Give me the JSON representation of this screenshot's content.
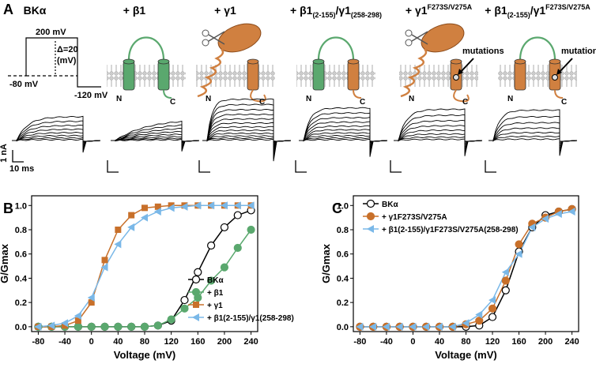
{
  "panel_a": {
    "label": "A",
    "headers": [
      [
        {
          "t": "BKα"
        }
      ],
      [
        {
          "t": "+ β1"
        }
      ],
      [
        {
          "t": "+ γ1"
        }
      ],
      [
        {
          "t": "+ β1"
        },
        {
          "t": "(2-155)",
          "s": "sub"
        },
        {
          "t": "/γ1"
        },
        {
          "t": "(258-298)",
          "s": "sub"
        }
      ],
      [
        {
          "t": "+ γ1"
        },
        {
          "t": "F273S/V275A",
          "s": "sup"
        }
      ],
      [
        {
          "t": "+ β1"
        },
        {
          "t": "(2-155)",
          "s": "sub"
        },
        {
          "t": "/γ1"
        },
        {
          "t": "F273S/V275A",
          "s": "sup"
        }
      ]
    ],
    "protocol": {
      "top": "200 mV",
      "step": "Δ=20",
      "unit": "(mV)",
      "hold": "-80 mV",
      "tail": "-120 mV"
    },
    "termini": {
      "n": "N",
      "c": "C"
    },
    "mutations": "mutations",
    "scale": {
      "current": "1 nA",
      "time": "10 ms"
    }
  },
  "chart_data": [
    {
      "type": "line",
      "panel": "B",
      "xlabel": "Voltage (mV)",
      "ylabel": "G/Gmax",
      "legend": "lower right",
      "x": [
        -80,
        -60,
        -40,
        -20,
        0,
        20,
        40,
        60,
        80,
        100,
        120,
        140,
        160,
        180,
        200,
        220,
        240
      ],
      "xlim": [
        -90,
        250
      ],
      "xticks": [
        -80,
        -40,
        0,
        40,
        80,
        120,
        160,
        200,
        240
      ],
      "ylim": [
        -0.04,
        1.08
      ],
      "yticks": [
        {
          "value": 0,
          "label": "0.0"
        },
        {
          "value": 0.2,
          "label": "0.2"
        },
        {
          "value": 0.4,
          "label": "0.4"
        },
        {
          "value": 0.6,
          "label": "0.6"
        },
        {
          "value": 0.8,
          "label": "0.8"
        },
        {
          "value": 1,
          "label": "1.0"
        }
      ],
      "series": [
        {
          "name": "BKα",
          "color": "#000000",
          "marker": "open-circle",
          "values": [
            0,
            0,
            0,
            0,
            0,
            0,
            0,
            0,
            0,
            0.01,
            0.05,
            0.22,
            0.45,
            0.67,
            0.82,
            0.92,
            0.96
          ]
        },
        {
          "name": "+ β1",
          "color": "#5aa86e",
          "marker": "circle",
          "values": [
            0,
            0,
            0,
            0,
            0,
            0,
            0,
            0,
            0,
            0.01,
            0.06,
            0.15,
            0.24,
            0.38,
            0.49,
            0.65,
            0.8
          ]
        },
        {
          "name": "+ γ1",
          "color": "#c8702a",
          "marker": "square",
          "values": [
            0,
            0,
            0.01,
            0.05,
            0.2,
            0.55,
            0.8,
            0.92,
            0.98,
            0.99,
            1,
            1,
            1,
            1,
            1,
            1,
            1
          ]
        },
        {
          "name": "+ β1(2-155)/γ1(258-298)",
          "color": "#7ab8e8",
          "marker": "triangle",
          "values": [
            0,
            0.01,
            0.03,
            0.09,
            0.24,
            0.49,
            0.68,
            0.82,
            0.9,
            0.95,
            0.98,
            0.99,
            1,
            1,
            1,
            1,
            1
          ]
        }
      ]
    },
    {
      "type": "line",
      "panel": "C",
      "xlabel": "Voltage (mV)",
      "ylabel": "G/Gmax",
      "legend": "upper left",
      "x": [
        -80,
        -60,
        -40,
        -20,
        0,
        20,
        40,
        60,
        80,
        100,
        120,
        140,
        160,
        180,
        200,
        220,
        240
      ],
      "xlim": [
        -90,
        250
      ],
      "xticks": [
        -80,
        -40,
        0,
        40,
        80,
        120,
        160,
        200,
        240
      ],
      "ylim": [
        -0.04,
        1.08
      ],
      "yticks": [
        {
          "value": 0,
          "label": "0.0"
        },
        {
          "value": 0.2,
          "label": "0.2"
        },
        {
          "value": 0.4,
          "label": "0.4"
        },
        {
          "value": 0.6,
          "label": "0.6"
        },
        {
          "value": 0.8,
          "label": "0.8"
        },
        {
          "value": 1,
          "label": "1.0"
        }
      ],
      "series": [
        {
          "name": "BKα",
          "color": "#000000",
          "marker": "open-circle",
          "values": [
            0,
            0,
            0,
            0,
            0,
            0,
            0,
            0,
            0,
            0.01,
            0.08,
            0.3,
            0.62,
            0.82,
            0.92,
            0.95,
            0.97
          ]
        },
        {
          "name": "+ γ1F273S/V275A",
          "color": "#c8702a",
          "marker": "circle",
          "values": [
            0,
            0,
            0,
            0,
            0,
            0,
            0,
            0,
            0.02,
            0.05,
            0.15,
            0.38,
            0.68,
            0.85,
            0.9,
            0.95,
            0.97
          ]
        },
        {
          "name": "+ β1(2-155)/γ1F273S/V275A(258-298)",
          "color": "#7ab8e8",
          "marker": "triangle",
          "values": [
            0,
            0,
            0,
            0,
            0,
            0,
            0,
            0,
            0.03,
            0.1,
            0.22,
            0.45,
            0.6,
            0.82,
            0.89,
            0.93,
            0.95
          ]
        }
      ]
    }
  ]
}
